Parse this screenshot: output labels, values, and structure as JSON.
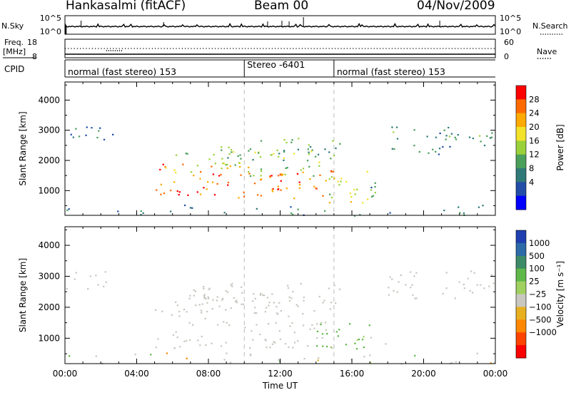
{
  "header": {
    "station": "Hankasalmi (fitACF)",
    "beam": "Beam 00",
    "date": "04/Nov/2009"
  },
  "nsky_panel": {
    "left_label": "N.Sky",
    "right_label": "N.Search",
    "left_ticks": [
      "10^5",
      "10^0"
    ],
    "right_ticks": [
      "10^5",
      "10^0"
    ]
  },
  "freq_panel": {
    "left_label_1": "Freq.",
    "left_label_2": "[MHz]",
    "right_label": "Nave",
    "left_ticks": [
      "18",
      "8"
    ],
    "right_ticks": [
      "60",
      "0"
    ],
    "cpid_label": "CPID"
  },
  "cpid_panel": {
    "segments": [
      {
        "text": "normal (fast stereo) 153",
        "start_hour": 0,
        "end_hour": 10
      },
      {
        "text": "Stereo -6401",
        "start_hour": 10,
        "end_hour": 15
      },
      {
        "text": "normal (fast stereo) 153",
        "start_hour": 15,
        "end_hour": 24
      }
    ]
  },
  "power_colorbar": {
    "label": "Power [dB]",
    "ticks": [
      "28",
      "24",
      "20",
      "16",
      "12",
      "8",
      "4"
    ],
    "colors": [
      "#ff0000",
      "#ff6a00",
      "#ffaa00",
      "#f2e22a",
      "#9ad13a",
      "#4aa05a",
      "#2f7a78",
      "#224ea8",
      "#0000ff"
    ]
  },
  "velocity_colorbar": {
    "label": "Velocity [m s⁻¹]",
    "ticks": [
      "1000",
      "500",
      "100",
      "25",
      "−25",
      "−100",
      "−500",
      "−1000"
    ],
    "colors": [
      "#1f3fb0",
      "#2c6aa8",
      "#3d8a68",
      "#5fb84a",
      "#a0d060",
      "#c8c8c0",
      "#e8b020",
      "#ff8800",
      "#ff4400",
      "#ff0000"
    ]
  },
  "chart_data": [
    {
      "type": "heatmap",
      "name": "power",
      "xlabel": "Time UT",
      "ylabel": "Slant Range [km]",
      "xlim": [
        0,
        24
      ],
      "ylim": [
        180,
        4600
      ],
      "x_ticks": [
        "00:00",
        "04:00",
        "08:00",
        "12:00",
        "16:00",
        "20:00",
        "00:00"
      ],
      "y_ticks": [
        1000,
        2000,
        3000,
        4000
      ],
      "colorbar_label": "Power [dB]",
      "colorbar_ticks": [
        4,
        8,
        12,
        16,
        20,
        24,
        28
      ],
      "scatter_regions": [
        {
          "t_start": 0.0,
          "t_end": 2.7,
          "r_low": 2600,
          "r_high": 3200,
          "power": 6
        },
        {
          "t_start": 5.0,
          "t_end": 15.0,
          "r_low": 750,
          "r_high": 1900,
          "power": 26
        },
        {
          "t_start": 5.5,
          "t_end": 14.5,
          "r_low": 1500,
          "r_high": 2400,
          "power": 15
        },
        {
          "t_start": 8.5,
          "t_end": 15.5,
          "r_low": 2000,
          "r_high": 2800,
          "power": 11
        },
        {
          "t_start": 14.5,
          "t_end": 17.5,
          "r_low": 600,
          "r_high": 1700,
          "power": 17
        },
        {
          "t_start": 17.0,
          "t_end": 18.0,
          "r_low": 950,
          "r_high": 1150,
          "power": 5
        },
        {
          "t_start": 18.0,
          "t_end": 24.0,
          "r_low": 2200,
          "r_high": 3200,
          "power": 9
        },
        {
          "t_start": 0.0,
          "t_end": 24.0,
          "r_low": 180,
          "r_high": 550,
          "power": 7
        }
      ]
    },
    {
      "type": "heatmap",
      "name": "velocity",
      "xlabel": "Time UT",
      "ylabel": "Slant Range [km]",
      "xlim": [
        0,
        24
      ],
      "ylim": [
        180,
        4600
      ],
      "x_ticks": [
        "00:00",
        "04:00",
        "08:00",
        "12:00",
        "16:00",
        "20:00",
        "00:00"
      ],
      "y_ticks": [
        1000,
        2000,
        3000,
        4000
      ],
      "colorbar_label": "Velocity [m s⁻¹]",
      "colorbar_ticks": [
        1000,
        500,
        100,
        25,
        -25,
        -100,
        -500,
        -1000
      ],
      "scatter_regions": [
        {
          "t_start": 0.0,
          "t_end": 2.7,
          "r_low": 2600,
          "r_high": 3200,
          "velocity": 0
        },
        {
          "t_start": 5.0,
          "t_end": 15.0,
          "r_low": 700,
          "r_high": 2400,
          "velocity": 0
        },
        {
          "t_start": 7.0,
          "t_end": 15.5,
          "r_low": 2000,
          "r_high": 2800,
          "velocity": 0
        },
        {
          "t_start": 14.0,
          "t_end": 17.0,
          "r_low": 650,
          "r_high": 1600,
          "velocity": 80
        },
        {
          "t_start": 17.0,
          "t_end": 18.0,
          "r_low": 800,
          "r_high": 1050,
          "velocity": 0
        },
        {
          "t_start": 18.0,
          "t_end": 24.0,
          "r_low": 2200,
          "r_high": 3200,
          "velocity": 0
        },
        {
          "t_start": 0.0,
          "t_end": 24.0,
          "r_low": 180,
          "r_high": 550,
          "velocity": 0
        }
      ]
    }
  ]
}
